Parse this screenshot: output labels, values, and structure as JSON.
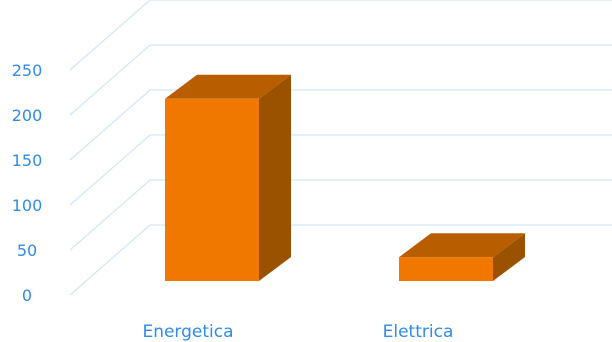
{
  "chart_data": {
    "type": "bar",
    "title": "",
    "xlabel": "",
    "ylabel": "",
    "categories": [
      "Energetica",
      "Elettrica"
    ],
    "values": [
      218,
      42
    ],
    "ylim": [
      0,
      250
    ],
    "yticks": [
      0,
      50,
      100,
      150,
      200,
      250
    ],
    "grid": true,
    "style": "3d",
    "colors": {
      "bar_front": "#f07800",
      "bar_top": "#b85e00",
      "bar_side": "#9a5200",
      "grid": "#cfe6f7",
      "labels": "#2f8ce8"
    }
  }
}
